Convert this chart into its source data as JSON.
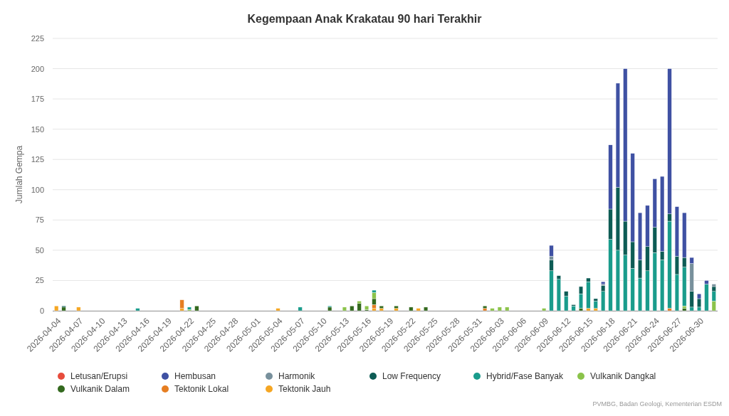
{
  "chart_data": {
    "type": "bar",
    "title": "Kegempaan Anak Krakatau 90 hari Terakhir",
    "ylabel": "Jumlah Gempa",
    "categories": [
      "2026-04-04",
      null,
      null,
      "2026-04-07",
      null,
      null,
      "2026-04-10",
      null,
      null,
      "2026-04-13",
      null,
      null,
      "2026-04-16",
      null,
      null,
      "2026-04-19",
      null,
      null,
      "2026-04-22",
      null,
      null,
      "2026-04-25",
      null,
      null,
      "2026-04-28",
      null,
      null,
      "2026-05-01",
      null,
      null,
      "2026-05-04",
      null,
      null,
      "2026-05-07",
      null,
      null,
      "2026-05-10",
      null,
      null,
      "2026-05-13",
      null,
      null,
      "2026-05-16",
      null,
      null,
      "2026-05-19",
      null,
      null,
      "2026-05-22",
      null,
      null,
      "2026-05-25",
      null,
      null,
      "2026-05-28",
      null,
      null,
      "2026-05-31",
      null,
      null,
      "2026-06-03",
      null,
      null,
      "2026-06-06",
      null,
      null,
      "2026-06-09",
      null,
      null,
      "2026-06-12",
      null,
      null,
      "2026-06-15",
      null,
      null,
      "2026-06-18",
      null,
      null,
      "2026-06-21",
      null,
      null,
      "2026-06-24",
      null,
      null,
      "2026-06-27",
      null,
      null,
      "2026-06-30",
      null,
      null
    ],
    "stacked": true,
    "series": [
      {
        "name": "Tektonik Jauh",
        "color": "#f5a623",
        "values": [
          4,
          0,
          0,
          3,
          0,
          0,
          0,
          0,
          0,
          0,
          0,
          0,
          0,
          0,
          0,
          0,
          0,
          2,
          0,
          0,
          0,
          0,
          0,
          0,
          0,
          0,
          0,
          0,
          0,
          0,
          2,
          0,
          0,
          0,
          0,
          0,
          0,
          0,
          0,
          0,
          0,
          0,
          0,
          2,
          2,
          0,
          2,
          0,
          0,
          2,
          0,
          0,
          0,
          0,
          0,
          0,
          0,
          0,
          0,
          0,
          0,
          0,
          0,
          0,
          0,
          0,
          0,
          0,
          0,
          0,
          0,
          0,
          2,
          2,
          0,
          0,
          0,
          0,
          0,
          0,
          0,
          0,
          0,
          0,
          0,
          0,
          0,
          0,
          0,
          0
        ]
      },
      {
        "name": "Tektonik Lokal",
        "color": "#e67e22",
        "values": [
          0,
          0,
          0,
          0,
          0,
          0,
          0,
          0,
          0,
          0,
          0,
          0,
          0,
          0,
          0,
          0,
          0,
          7,
          0,
          0,
          0,
          0,
          0,
          0,
          0,
          0,
          0,
          0,
          0,
          0,
          0,
          0,
          0,
          0,
          0,
          0,
          0,
          0,
          0,
          0,
          0,
          0,
          0,
          3,
          0,
          0,
          0,
          0,
          0,
          0,
          0,
          0,
          0,
          0,
          0,
          0,
          0,
          0,
          2,
          0,
          0,
          0,
          0,
          0,
          0,
          0,
          0,
          0,
          0,
          0,
          0,
          0,
          0,
          0,
          0,
          0,
          0,
          0,
          0,
          0,
          0,
          0,
          0,
          2,
          0,
          0,
          0,
          0,
          0,
          0
        ]
      },
      {
        "name": "Vulkanik Dalam",
        "color": "#33691e",
        "values": [
          0,
          3,
          0,
          0,
          0,
          0,
          0,
          0,
          0,
          0,
          0,
          0,
          0,
          0,
          0,
          0,
          0,
          0,
          0,
          4,
          0,
          0,
          0,
          0,
          0,
          0,
          0,
          0,
          0,
          0,
          0,
          0,
          0,
          0,
          0,
          0,
          0,
          3,
          0,
          0,
          4,
          6,
          1,
          5,
          2,
          0,
          2,
          0,
          3,
          0,
          3,
          0,
          0,
          0,
          0,
          0,
          0,
          0,
          2,
          0,
          0,
          0,
          0,
          0,
          0,
          0,
          0,
          0,
          0,
          0,
          0,
          2,
          0,
          0,
          0,
          0,
          0,
          0,
          0,
          0,
          0,
          0,
          0,
          0,
          0,
          2,
          0,
          0,
          0,
          0
        ]
      },
      {
        "name": "Vulkanik Dangkal",
        "color": "#8bc34a",
        "values": [
          0,
          0,
          0,
          0,
          0,
          0,
          0,
          0,
          0,
          0,
          0,
          0,
          0,
          0,
          0,
          0,
          0,
          0,
          1,
          0,
          0,
          0,
          0,
          0,
          0,
          0,
          0,
          0,
          0,
          0,
          0,
          0,
          0,
          0,
          0,
          0,
          0,
          0,
          0,
          3,
          0,
          2,
          3,
          5,
          0,
          0,
          0,
          0,
          0,
          0,
          0,
          0,
          0,
          0,
          0,
          0,
          0,
          0,
          0,
          2,
          3,
          3,
          0,
          0,
          0,
          0,
          2,
          0,
          0,
          0,
          0,
          0,
          0,
          0,
          0,
          0,
          0,
          0,
          0,
          0,
          0,
          0,
          0,
          0,
          0,
          2,
          0,
          0,
          0,
          8
        ]
      },
      {
        "name": "Hybrid/Fase Banyak",
        "color": "#1a9c8c",
        "values": [
          0,
          0,
          0,
          0,
          0,
          0,
          0,
          0,
          0,
          0,
          0,
          2,
          0,
          0,
          0,
          0,
          0,
          0,
          2,
          0,
          0,
          0,
          0,
          0,
          0,
          0,
          0,
          0,
          0,
          0,
          0,
          0,
          0,
          3,
          0,
          0,
          0,
          1,
          0,
          0,
          0,
          0,
          0,
          2,
          0,
          0,
          0,
          0,
          0,
          0,
          0,
          0,
          0,
          0,
          0,
          0,
          0,
          0,
          0,
          0,
          0,
          0,
          0,
          0,
          0,
          0,
          0,
          33,
          26,
          12,
          4,
          12,
          22,
          6,
          16,
          59,
          50,
          46,
          35,
          27,
          33,
          48,
          42,
          72,
          30,
          32,
          3,
          3,
          22,
          8
        ]
      },
      {
        "name": "Low Frequency",
        "color": "#0d5c55",
        "values": [
          0,
          1,
          0,
          0,
          0,
          0,
          0,
          0,
          0,
          0,
          0,
          0,
          0,
          0,
          0,
          0,
          0,
          0,
          0,
          0,
          0,
          0,
          0,
          0,
          0,
          0,
          0,
          0,
          0,
          0,
          0,
          0,
          0,
          0,
          0,
          0,
          0,
          0,
          0,
          0,
          0,
          0,
          0,
          0,
          0,
          0,
          0,
          0,
          0,
          0,
          0,
          0,
          0,
          0,
          0,
          0,
          0,
          0,
          0,
          0,
          0,
          0,
          0,
          0,
          0,
          0,
          0,
          9,
          3,
          4,
          1,
          6,
          3,
          2,
          5,
          25,
          52,
          28,
          22,
          15,
          20,
          21,
          7,
          6,
          15,
          8,
          13,
          7,
          0,
          4
        ]
      },
      {
        "name": "Harmonik",
        "color": "#78909c",
        "values": [
          0,
          0,
          0,
          0,
          0,
          0,
          0,
          0,
          0,
          0,
          0,
          0,
          0,
          0,
          0,
          0,
          0,
          0,
          0,
          0,
          0,
          0,
          0,
          0,
          0,
          0,
          0,
          0,
          0,
          0,
          0,
          0,
          0,
          0,
          0,
          0,
          0,
          0,
          0,
          0,
          0,
          0,
          0,
          0,
          0,
          0,
          0,
          0,
          0,
          0,
          0,
          0,
          0,
          0,
          0,
          0,
          0,
          0,
          0,
          0,
          0,
          0,
          0,
          0,
          0,
          0,
          0,
          3,
          0,
          0,
          0,
          0,
          0,
          0,
          1,
          0,
          0,
          0,
          0,
          0,
          0,
          0,
          0,
          0,
          0,
          0,
          23,
          0,
          0,
          2
        ]
      },
      {
        "name": "Hembusan",
        "color": "#3f51a3",
        "values": [
          0,
          0,
          0,
          0,
          0,
          0,
          0,
          0,
          0,
          0,
          0,
          0,
          0,
          0,
          0,
          0,
          0,
          0,
          0,
          0,
          0,
          0,
          0,
          0,
          0,
          0,
          0,
          0,
          0,
          0,
          0,
          0,
          0,
          0,
          0,
          0,
          0,
          0,
          0,
          0,
          0,
          0,
          0,
          0,
          0,
          0,
          0,
          0,
          0,
          0,
          0,
          0,
          0,
          0,
          0,
          0,
          0,
          0,
          0,
          0,
          0,
          0,
          0,
          0,
          0,
          0,
          0,
          9,
          0,
          0,
          0,
          0,
          0,
          0,
          2,
          53,
          86,
          126,
          73,
          39,
          34,
          40,
          62,
          120,
          41,
          37,
          5,
          4,
          3,
          0
        ]
      },
      {
        "name": "Letusan/Erupsi",
        "color": "#e74c3c",
        "values": [
          0,
          0,
          0,
          0,
          0,
          0,
          0,
          0,
          0,
          0,
          0,
          0,
          0,
          0,
          0,
          0,
          0,
          0,
          0,
          0,
          0,
          0,
          0,
          0,
          0,
          0,
          0,
          0,
          0,
          0,
          0,
          0,
          0,
          0,
          0,
          0,
          0,
          0,
          0,
          0,
          0,
          0,
          0,
          0,
          0,
          0,
          0,
          0,
          0,
          0,
          0,
          0,
          0,
          0,
          0,
          0,
          0,
          0,
          0,
          0,
          0,
          0,
          0,
          0,
          0,
          0,
          0,
          0,
          0,
          0,
          0,
          0,
          0,
          0,
          0,
          0,
          0,
          0,
          0,
          0,
          0,
          0,
          0,
          0,
          0,
          0,
          0,
          0,
          0,
          0
        ]
      }
    ],
    "ylim": [
      0,
      225
    ],
    "yticks": [
      0,
      25,
      50,
      75,
      100,
      125,
      150,
      175,
      200,
      225
    ],
    "grid": "y",
    "legend": "bottom",
    "annotations": [
      "PVMBG, Badan Geologi, Kementerian ESDM"
    ]
  }
}
